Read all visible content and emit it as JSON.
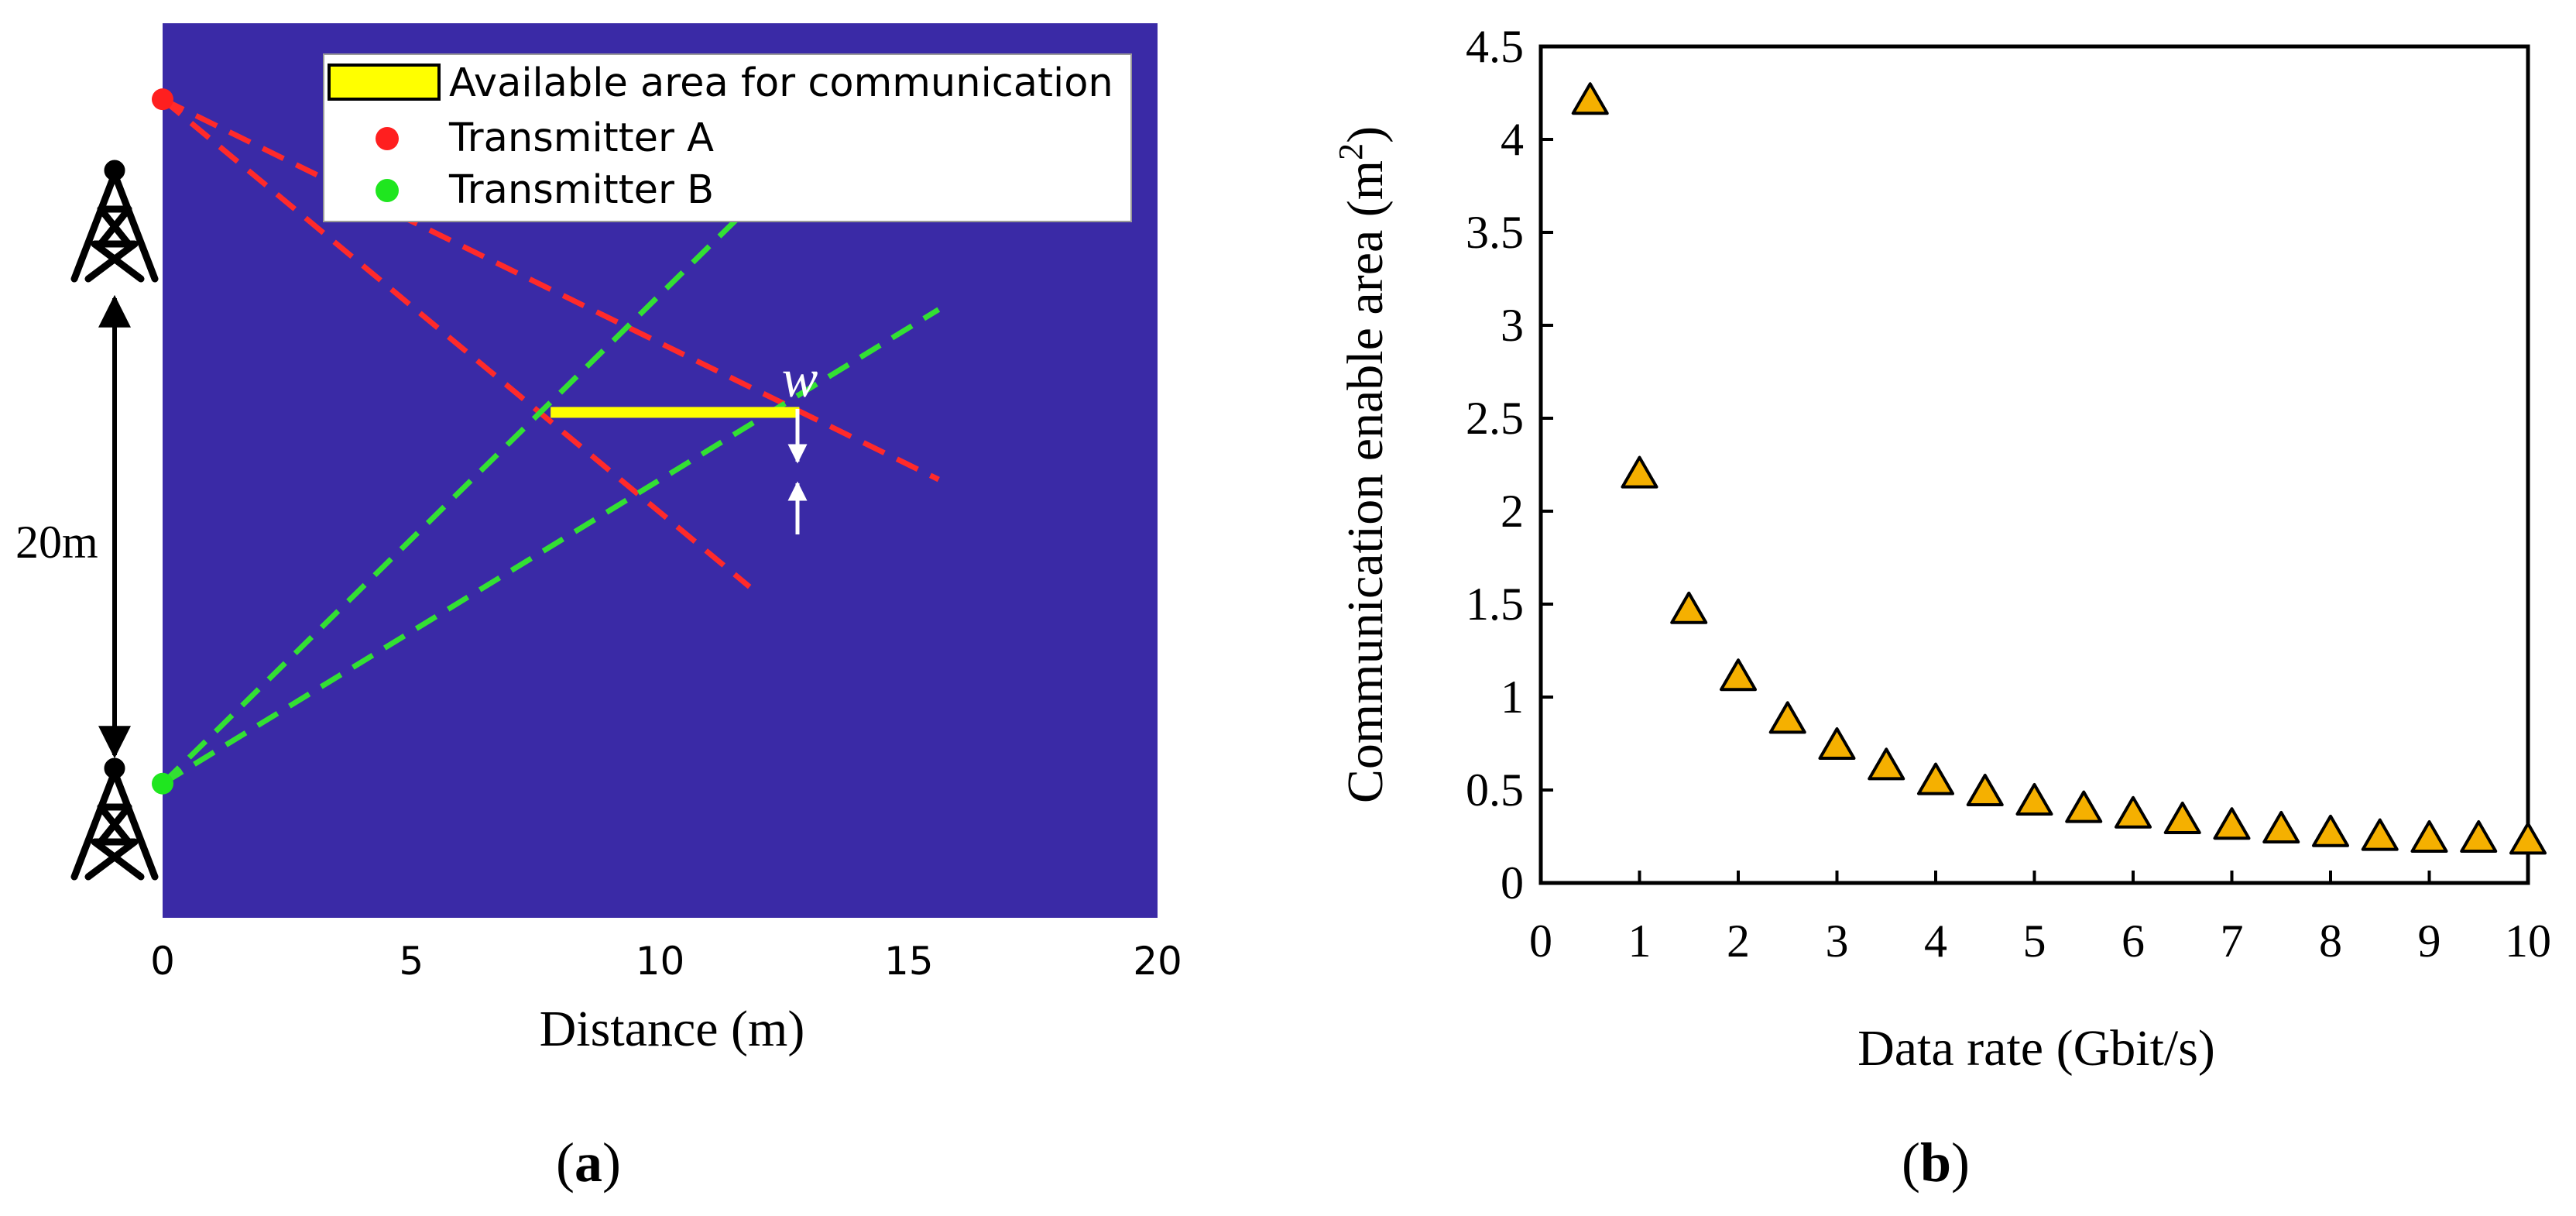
{
  "chart_data": [
    {
      "type": "diagram",
      "panel_label": "(a)",
      "panel_letter": "a",
      "xlabel": "Distance (m)",
      "xlim": [
        0,
        20
      ],
      "ylim": [
        0,
        20
      ],
      "xticks": [
        0,
        5,
        10,
        15,
        20
      ],
      "xtick_labels": [
        "0",
        "5",
        "10",
        "15",
        "20"
      ],
      "background_color": "#3a2aa6",
      "legend": {
        "position": "top-right",
        "entries": [
          {
            "label": "Available area for communication",
            "color": "#ffff00",
            "marker": "bar"
          },
          {
            "label": "Transmitter A",
            "color": "#ff1f1f",
            "marker": "dot"
          },
          {
            "label": "Transmitter B",
            "color": "#1fe61f",
            "marker": "dot"
          }
        ]
      },
      "transmitters": [
        {
          "name": "Transmitter A",
          "x": 0,
          "y": 18.3,
          "color": "#ff1f1f"
        },
        {
          "name": "Transmitter B",
          "x": 0,
          "y": 3.0,
          "color": "#1fe61f"
        }
      ],
      "beam_lines": [
        {
          "source": "A",
          "color": "#ff2a2a",
          "from": [
            0,
            18.3
          ],
          "to": [
            15.6,
            9.8
          ]
        },
        {
          "source": "A",
          "color": "#ff2a2a",
          "from": [
            0,
            18.3
          ],
          "to": [
            11.8,
            7.4
          ]
        },
        {
          "source": "B",
          "color": "#33e033",
          "from": [
            0,
            3.0
          ],
          "to": [
            11.8,
            15.9
          ]
        },
        {
          "source": "B",
          "color": "#33e033",
          "from": [
            0,
            3.0
          ],
          "to": [
            15.6,
            13.6
          ]
        }
      ],
      "available_area": {
        "x_start": 7.8,
        "x_end": 12.8,
        "y": 11.3,
        "color": "#ffff00"
      },
      "width_label": "w",
      "separation_label": "20m"
    },
    {
      "type": "scatter",
      "panel_label": "(b)",
      "panel_letter": "b",
      "xlabel": "Data rate (Gbit/s)",
      "ylabel": "Communication enable area (m",
      "ylabel_sup": "2",
      "ylabel_close": ")",
      "xlim": [
        0,
        10
      ],
      "ylim": [
        0,
        4.5
      ],
      "xticks": [
        0,
        1,
        2,
        3,
        4,
        5,
        6,
        7,
        8,
        9,
        10
      ],
      "xtick_labels": [
        "0",
        "1",
        "2",
        "3",
        "4",
        "5",
        "6",
        "7",
        "8",
        "9",
        "10"
      ],
      "yticks": [
        0,
        0.5,
        1,
        1.5,
        2,
        2.5,
        3,
        3.5,
        4,
        4.5
      ],
      "ytick_labels": [
        "0",
        "0.5",
        "1",
        "1.5",
        "2",
        "2.5",
        "3",
        "3.5",
        "4",
        "4.5"
      ],
      "marker": "triangle",
      "marker_color": "#f5b000",
      "series": [
        {
          "name": "Communication enable area",
          "x": [
            0.5,
            1.0,
            1.5,
            2.0,
            2.5,
            3.0,
            3.5,
            4.0,
            4.5,
            5.0,
            5.5,
            6.0,
            6.5,
            7.0,
            7.5,
            8.0,
            8.5,
            9.0,
            9.5,
            10.0
          ],
          "y": [
            4.22,
            2.21,
            1.48,
            1.12,
            0.89,
            0.75,
            0.64,
            0.56,
            0.5,
            0.45,
            0.41,
            0.38,
            0.35,
            0.32,
            0.3,
            0.28,
            0.26,
            0.25,
            0.25,
            0.24
          ]
        }
      ]
    }
  ]
}
